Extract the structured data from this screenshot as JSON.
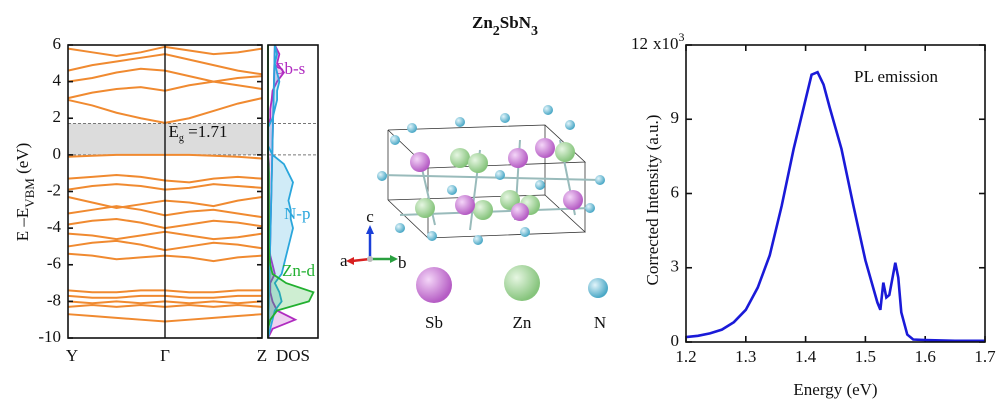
{
  "title": [
    "Zn",
    "2",
    "Sb",
    "N",
    "3"
  ],
  "structure": {
    "elements": [
      "Sb",
      "Zn",
      "N"
    ],
    "axes": [
      "a",
      "b",
      "c"
    ]
  },
  "chart_data": [
    {
      "type": "bands",
      "y_label": [
        "E –E",
        "VBM",
        " (eV)"
      ],
      "annotation": [
        "E",
        "g",
        " =1.71"
      ],
      "band_gap": 1.71,
      "color": "#f08a30",
      "x": [
        0,
        0.25,
        0.5,
        0.75,
        1,
        1.25,
        1.5,
        1.75,
        2
      ],
      "xlim": [
        0,
        2
      ],
      "xticks": [
        {
          "value": 0,
          "label": "Y"
        },
        {
          "value": 1,
          "label": "Γ"
        },
        {
          "value": 2,
          "label": "Z"
        }
      ],
      "ylim": [
        -10,
        6
      ],
      "yticks": [
        -10,
        -8,
        -6,
        -4,
        -2,
        0,
        2,
        4,
        6
      ],
      "series": [
        {
          "values": [
            3.0,
            2.7,
            2.3,
            2.0,
            1.75,
            2.0,
            2.4,
            2.8,
            3.1
          ]
        },
        {
          "values": [
            3.1,
            3.4,
            3.6,
            3.7,
            3.5,
            3.8,
            4.0,
            4.2,
            4.3
          ]
        },
        {
          "values": [
            4.0,
            4.2,
            4.5,
            4.7,
            4.6,
            4.3,
            4.0,
            3.8,
            3.6
          ]
        },
        {
          "values": [
            4.6,
            4.9,
            5.1,
            5.3,
            5.5,
            5.2,
            4.9,
            4.6,
            4.4
          ]
        },
        {
          "values": [
            5.8,
            5.6,
            5.4,
            5.6,
            5.9,
            5.7,
            5.5,
            5.6,
            5.8
          ]
        },
        {
          "values": [
            -0.1,
            -0.05,
            0,
            0,
            0,
            0,
            -0.05,
            -0.1,
            -0.2
          ]
        },
        {
          "values": [
            -1.3,
            -1.2,
            -1.1,
            -1.2,
            -1.4,
            -1.5,
            -1.3,
            -1.2,
            -1.3
          ]
        },
        {
          "values": [
            -1.9,
            -1.7,
            -1.6,
            -1.7,
            -1.9,
            -1.8,
            -1.6,
            -1.7,
            -1.8
          ]
        },
        {
          "values": [
            -2.3,
            -2.6,
            -2.9,
            -2.7,
            -2.5,
            -2.6,
            -2.8,
            -2.5,
            -2.3
          ]
        },
        {
          "values": [
            -3.2,
            -3.0,
            -2.8,
            -3.0,
            -3.3,
            -3.1,
            -3.0,
            -3.2,
            -3.4
          ]
        },
        {
          "values": [
            -3.8,
            -3.6,
            -3.5,
            -3.7,
            -4.0,
            -3.8,
            -3.6,
            -3.7,
            -3.9
          ]
        },
        {
          "values": [
            -4.3,
            -4.4,
            -4.6,
            -4.4,
            -4.2,
            -4.4,
            -4.6,
            -4.5,
            -4.3
          ]
        },
        {
          "values": [
            -5.0,
            -4.8,
            -4.7,
            -4.9,
            -5.2,
            -5.0,
            -4.8,
            -4.9,
            -5.1
          ]
        },
        {
          "values": [
            -5.4,
            -5.5,
            -5.7,
            -5.6,
            -5.5,
            -5.6,
            -5.8,
            -5.6,
            -5.5
          ]
        },
        {
          "values": [
            -7.4,
            -7.5,
            -7.5,
            -7.4,
            -7.4,
            -7.5,
            -7.5,
            -7.4,
            -7.4
          ]
        },
        {
          "values": [
            -7.7,
            -7.8,
            -7.8,
            -7.7,
            -7.7,
            -7.8,
            -7.8,
            -7.7,
            -7.7
          ]
        },
        {
          "values": [
            -8.0,
            -8.1,
            -8.0,
            -8.1,
            -8.0,
            -8.1,
            -8.0,
            -8.1,
            -8.0
          ]
        },
        {
          "values": [
            -8.3,
            -8.2,
            -8.3,
            -8.2,
            -8.3,
            -8.2,
            -8.3,
            -8.2,
            -8.3
          ]
        },
        {
          "values": [
            -8.7,
            -8.8,
            -8.9,
            -9.0,
            -9.1,
            -9.0,
            -8.9,
            -8.8,
            -8.7
          ]
        }
      ]
    },
    {
      "type": "dos",
      "x_label": "DOS",
      "xlim": [
        0,
        1.1
      ],
      "ylim": [
        -10,
        6
      ],
      "y": [
        -10,
        -9.5,
        -9,
        -8.5,
        -8,
        -7.5,
        -7,
        -6.5,
        -6,
        -5.5,
        -5,
        -4.5,
        -4,
        -3.5,
        -3,
        -2.5,
        -2,
        -1.5,
        -1,
        -0.5,
        0,
        0.5,
        1,
        1.5,
        2,
        2.5,
        3,
        3.5,
        4,
        4.5,
        5,
        5.5,
        6
      ],
      "series": [
        {
          "name": "Sb-s",
          "color": "#b02cc0",
          "values": [
            0,
            0.1,
            0.6,
            0.2,
            0.1,
            0.05,
            0.05,
            0.15,
            0.1,
            0.05,
            0.03,
            0.02,
            0.02,
            0.02,
            0.02,
            0.02,
            0.02,
            0.02,
            0.02,
            0.02,
            0,
            0,
            0,
            0,
            0.05,
            0.05,
            0.08,
            0.1,
            0.2,
            0.35,
            0.2,
            0.25,
            0.15
          ]
        },
        {
          "name": "N-p",
          "color": "#2aa6dc",
          "values": [
            0,
            0.05,
            0.1,
            0.15,
            0.3,
            0.25,
            0.15,
            0.3,
            0.35,
            0.4,
            0.45,
            0.5,
            0.55,
            0.5,
            0.5,
            0.45,
            0.5,
            0.55,
            0.45,
            0.35,
            0.1,
            0,
            0,
            0,
            0.1,
            0.15,
            0.2,
            0.2,
            0.25,
            0.2,
            0.15,
            0.2,
            0.15
          ]
        },
        {
          "name": "Zn-d",
          "color": "#22b030",
          "values": [
            0,
            0,
            0.05,
            0.2,
            0.9,
            1.0,
            0.4,
            0.1,
            0.05,
            0.03,
            0.02,
            0.02,
            0.02,
            0.02,
            0.02,
            0.02,
            0.02,
            0.02,
            0.02,
            0.01,
            0,
            0,
            0,
            0,
            0,
            0,
            0,
            0,
            0,
            0,
            0,
            0,
            0
          ]
        }
      ]
    },
    {
      "type": "line",
      "x_label": "Energy (eV)",
      "y_label": "Corrected Intensity (a.u.)",
      "y_multiplier": [
        "x10",
        "3"
      ],
      "annotation": "PL emission",
      "color": "#1a1ad8",
      "xlim": [
        1.2,
        1.7
      ],
      "xticks": [
        1.2,
        1.3,
        1.4,
        1.5,
        1.6,
        1.7
      ],
      "ylim": [
        0,
        12
      ],
      "yticks": [
        0,
        3,
        6,
        9,
        12
      ],
      "x": [
        1.2,
        1.22,
        1.24,
        1.26,
        1.28,
        1.3,
        1.32,
        1.34,
        1.36,
        1.38,
        1.4,
        1.41,
        1.42,
        1.43,
        1.44,
        1.46,
        1.48,
        1.5,
        1.52,
        1.525,
        1.53,
        1.535,
        1.54,
        1.55,
        1.555,
        1.56,
        1.57,
        1.58,
        1.6,
        1.65,
        1.7
      ],
      "values": [
        0.2,
        0.25,
        0.35,
        0.5,
        0.8,
        1.3,
        2.2,
        3.5,
        5.5,
        7.8,
        9.8,
        10.8,
        10.9,
        10.4,
        9.5,
        7.8,
        5.5,
        3.3,
        1.6,
        1.3,
        2.4,
        1.8,
        1.9,
        3.2,
        2.6,
        1.2,
        0.3,
        0.1,
        0.08,
        0.05,
        0.05
      ]
    }
  ]
}
